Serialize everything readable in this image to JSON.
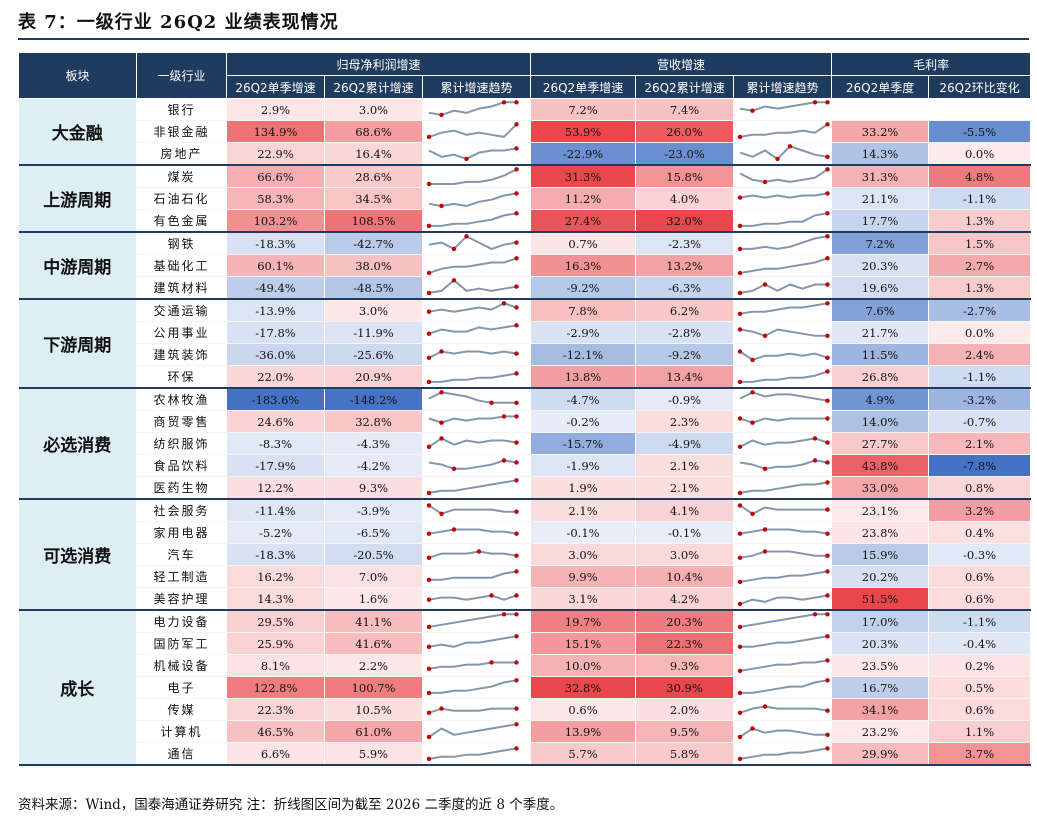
{
  "title": "表 7：一级行业 26Q2 业绩表现情况",
  "headers": {
    "sector": "板块",
    "industry": "一级行业",
    "group_profit": "归母净利润增速",
    "group_revenue": "营收增速",
    "group_margin": "毛利率",
    "q_single": "26Q2单季增速",
    "q_cum": "26Q2累计增速",
    "trend": "累计增速趋势",
    "margin_q": "26Q2单季度",
    "margin_chg": "26Q2环比变化"
  },
  "colors": {
    "header": "#1F3B5E",
    "sector_bg": "#DDEFF4",
    "pos": "#E8474B",
    "neg": "#4472C4",
    "spark": "#8496AA",
    "spark_dot": "#C00000"
  },
  "sectors": [
    {
      "name": "大金融",
      "rows": [
        {
          "ind": "银行",
          "p1": "2.9%",
          "p2": "3.0%",
          "r1": "7.2%",
          "r2": "7.4%",
          "m1": "",
          "m2": "",
          "ps": [
            3,
            2,
            4,
            3,
            5,
            6,
            8,
            8
          ],
          "rs": [
            5,
            4,
            6,
            5,
            6,
            7,
            8,
            8
          ]
        },
        {
          "ind": "非银金融",
          "p1": "134.9%",
          "p2": "68.6%",
          "r1": "53.9%",
          "r2": "26.0%",
          "m1": "33.2%",
          "m2": "-5.5%",
          "ps": [
            2,
            4,
            5,
            3,
            4,
            3,
            2,
            8
          ],
          "rs": [
            2,
            3,
            3,
            4,
            4,
            5,
            4,
            8
          ]
        },
        {
          "ind": "房地产",
          "p1": "22.9%",
          "p2": "16.4%",
          "r1": "-22.9%",
          "r2": "-23.0%",
          "m1": "14.3%",
          "m2": "0.0%",
          "ps": [
            6,
            3,
            4,
            2,
            5,
            6,
            6,
            7
          ],
          "rs": [
            5,
            3,
            6,
            2,
            8,
            6,
            4,
            3
          ]
        }
      ]
    },
    {
      "name": "上游周期",
      "rows": [
        {
          "ind": "煤炭",
          "p1": "66.6%",
          "p2": "28.6%",
          "r1": "31.3%",
          "r2": "15.8%",
          "m1": "31.3%",
          "m2": "4.8%",
          "ps": [
            1,
            1,
            1,
            2,
            2,
            3,
            5,
            8
          ],
          "rs": [
            6,
            3,
            2,
            3,
            2,
            3,
            4,
            8
          ]
        },
        {
          "ind": "石油石化",
          "p1": "58.3%",
          "p2": "34.5%",
          "r1": "11.2%",
          "r2": "4.0%",
          "m1": "21.1%",
          "m2": "-1.1%",
          "ps": [
            2,
            1,
            2,
            1,
            3,
            4,
            6,
            7
          ],
          "rs": [
            5,
            6,
            5,
            6,
            5,
            6,
            6,
            7
          ]
        },
        {
          "ind": "有色金属",
          "p1": "103.2%",
          "p2": "108.5%",
          "r1": "27.4%",
          "r2": "32.0%",
          "m1": "17.7%",
          "m2": "1.3%",
          "ps": [
            2,
            2,
            3,
            3,
            4,
            5,
            7,
            8
          ],
          "rs": [
            2,
            2,
            3,
            3,
            4,
            4,
            7,
            8
          ]
        }
      ]
    },
    {
      "name": "中游周期",
      "rows": [
        {
          "ind": "钢铁",
          "p1": "-18.3%",
          "p2": "-42.7%",
          "r1": "0.7%",
          "r2": "-2.3%",
          "m1": "7.2%",
          "m2": "1.5%",
          "ps": [
            4,
            5,
            2,
            8,
            5,
            2,
            4,
            5
          ],
          "rs": [
            2,
            2,
            3,
            2,
            3,
            5,
            7,
            8
          ]
        },
        {
          "ind": "基础化工",
          "p1": "60.1%",
          "p2": "38.0%",
          "r1": "16.3%",
          "r2": "13.2%",
          "m1": "20.3%",
          "m2": "2.7%",
          "ps": [
            1,
            3,
            4,
            4,
            5,
            6,
            6,
            8
          ],
          "rs": [
            1,
            2,
            3,
            3,
            4,
            5,
            6,
            8
          ]
        },
        {
          "ind": "建筑材料",
          "p1": "-49.4%",
          "p2": "-48.5%",
          "r1": "-9.2%",
          "r2": "-6.3%",
          "m1": "19.6%",
          "m2": "1.3%",
          "ps": [
            2,
            3,
            8,
            3,
            4,
            3,
            4,
            5
          ],
          "rs": [
            2,
            3,
            6,
            3,
            6,
            4,
            6,
            6
          ]
        }
      ]
    },
    {
      "name": "下游周期",
      "rows": [
        {
          "ind": "交通运输",
          "p1": "-13.9%",
          "p2": "3.0%",
          "r1": "7.8%",
          "r2": "6.2%",
          "m1": "7.6%",
          "m2": "-2.7%",
          "ps": [
            4,
            5,
            4,
            5,
            6,
            5,
            8,
            6
          ],
          "rs": [
            3,
            4,
            4,
            5,
            6,
            6,
            7,
            8
          ]
        },
        {
          "ind": "公用事业",
          "p1": "-17.8%",
          "p2": "-11.9%",
          "r1": "-2.9%",
          "r2": "-2.8%",
          "m1": "21.7%",
          "m2": "0.0%",
          "ps": [
            4,
            6,
            5,
            5,
            7,
            6,
            7,
            8
          ],
          "rs": [
            6,
            5,
            3,
            6,
            5,
            4,
            3,
            3
          ]
        },
        {
          "ind": "建筑装饰",
          "p1": "-36.0%",
          "p2": "-25.6%",
          "r1": "-12.1%",
          "r2": "-9.2%",
          "m1": "11.5%",
          "m2": "2.4%",
          "ps": [
            3,
            6,
            5,
            6,
            6,
            5,
            6,
            5
          ],
          "rs": [
            6,
            2,
            4,
            4,
            5,
            4,
            5,
            3
          ]
        },
        {
          "ind": "环保",
          "p1": "22.0%",
          "p2": "20.9%",
          "r1": "13.8%",
          "r2": "13.4%",
          "m1": "26.8%",
          "m2": "-1.1%",
          "ps": [
            2,
            2,
            3,
            3,
            4,
            4,
            5,
            6
          ],
          "rs": [
            2,
            2,
            3,
            3,
            4,
            4,
            5,
            7
          ]
        }
      ]
    },
    {
      "name": "必选消费",
      "rows": [
        {
          "ind": "农林牧渔",
          "p1": "-183.6%",
          "p2": "-148.2%",
          "r1": "-4.7%",
          "r2": "-0.9%",
          "m1": "4.9%",
          "m2": "-3.2%",
          "ps": [
            5,
            8,
            7,
            6,
            4,
            3,
            3,
            3
          ],
          "rs": [
            5,
            8,
            6,
            7,
            7,
            6,
            5,
            4
          ]
        },
        {
          "ind": "商贸零售",
          "p1": "24.6%",
          "p2": "32.8%",
          "r1": "-0.2%",
          "r2": "2.3%",
          "m1": "14.0%",
          "m2": "-0.7%",
          "ps": [
            6,
            4,
            6,
            5,
            6,
            6,
            7,
            7
          ],
          "rs": [
            6,
            4,
            6,
            5,
            6,
            6,
            6,
            6
          ]
        },
        {
          "ind": "纺织服饰",
          "p1": "-8.3%",
          "p2": "-4.3%",
          "r1": "-15.7%",
          "r2": "-4.9%",
          "m1": "27.7%",
          "m2": "2.1%",
          "ps": [
            3,
            7,
            4,
            6,
            5,
            6,
            6,
            5
          ],
          "rs": [
            3,
            6,
            4,
            5,
            5,
            6,
            7,
            5
          ]
        },
        {
          "ind": "食品饮料",
          "p1": "-17.9%",
          "p2": "-4.2%",
          "r1": "-1.9%",
          "r2": "2.1%",
          "m1": "43.8%",
          "m2": "-7.8%",
          "ps": [
            6,
            5,
            3,
            3,
            4,
            5,
            7,
            6
          ],
          "rs": [
            6,
            5,
            3,
            4,
            4,
            5,
            7,
            6
          ]
        },
        {
          "ind": "医药生物",
          "p1": "12.2%",
          "p2": "9.3%",
          "r1": "1.9%",
          "r2": "2.1%",
          "m1": "33.0%",
          "m2": "0.8%",
          "ps": [
            2,
            3,
            3,
            4,
            5,
            6,
            7,
            8
          ],
          "rs": [
            2,
            3,
            3,
            4,
            5,
            6,
            6,
            7
          ]
        }
      ]
    },
    {
      "name": "可选消费",
      "rows": [
        {
          "ind": "社会服务",
          "p1": "-11.4%",
          "p2": "-3.9%",
          "r1": "2.1%",
          "r2": "4.1%",
          "m1": "23.1%",
          "m2": "3.2%",
          "ps": [
            7,
            3,
            5,
            5,
            5,
            5,
            4,
            4
          ],
          "rs": [
            7,
            3,
            6,
            5,
            5,
            5,
            5,
            5
          ]
        },
        {
          "ind": "家用电器",
          "p1": "-5.2%",
          "p2": "-6.5%",
          "r1": "-0.1%",
          "r2": "-0.1%",
          "m1": "23.8%",
          "m2": "0.4%",
          "ps": [
            4,
            5,
            6,
            6,
            6,
            5,
            5,
            4
          ],
          "rs": [
            4,
            5,
            6,
            6,
            6,
            5,
            5,
            4
          ]
        },
        {
          "ind": "汽车",
          "p1": "-18.3%",
          "p2": "-20.5%",
          "r1": "3.0%",
          "r2": "3.0%",
          "m1": "15.9%",
          "m2": "-0.3%",
          "ps": [
            3,
            5,
            5,
            5,
            6,
            5,
            5,
            4
          ],
          "rs": [
            3,
            4,
            6,
            6,
            6,
            5,
            4,
            4
          ]
        },
        {
          "ind": "轻工制造",
          "p1": "16.2%",
          "p2": "7.0%",
          "r1": "9.9%",
          "r2": "10.4%",
          "m1": "20.2%",
          "m2": "0.6%",
          "ps": [
            3,
            3,
            4,
            4,
            4,
            4,
            6,
            7
          ],
          "rs": [
            2,
            3,
            4,
            4,
            5,
            5,
            6,
            7
          ]
        },
        {
          "ind": "美容护理",
          "p1": "14.3%",
          "p2": "1.6%",
          "r1": "3.1%",
          "r2": "4.2%",
          "m1": "51.5%",
          "m2": "0.6%",
          "ps": [
            4,
            5,
            5,
            4,
            5,
            6,
            4,
            6
          ],
          "rs": [
            2,
            4,
            3,
            5,
            5,
            4,
            5,
            6
          ]
        }
      ]
    },
    {
      "name": "成长",
      "rows": [
        {
          "ind": "电力设备",
          "p1": "29.5%",
          "p2": "41.1%",
          "r1": "19.7%",
          "r2": "20.3%",
          "m1": "17.0%",
          "m2": "-1.1%",
          "ps": [
            2,
            3,
            4,
            5,
            6,
            7,
            8,
            8
          ],
          "rs": [
            2,
            3,
            4,
            5,
            6,
            7,
            8,
            8
          ]
        },
        {
          "ind": "国防军工",
          "p1": "25.9%",
          "p2": "41.6%",
          "r1": "15.1%",
          "r2": "22.3%",
          "m1": "20.3%",
          "m2": "-0.4%",
          "ps": [
            3,
            4,
            3,
            5,
            5,
            6,
            7,
            8
          ],
          "rs": [
            3,
            3,
            4,
            5,
            5,
            6,
            7,
            8
          ]
        },
        {
          "ind": "机械设备",
          "p1": "8.1%",
          "p2": "2.2%",
          "r1": "10.0%",
          "r2": "9.3%",
          "m1": "23.5%",
          "m2": "0.2%",
          "ps": [
            3,
            4,
            4,
            5,
            5,
            6,
            6,
            6
          ],
          "rs": [
            2,
            3,
            4,
            5,
            5,
            6,
            6,
            7
          ]
        },
        {
          "ind": "电子",
          "p1": "122.8%",
          "p2": "100.7%",
          "r1": "32.8%",
          "r2": "30.9%",
          "m1": "16.7%",
          "m2": "0.5%",
          "ps": [
            2,
            2,
            3,
            3,
            4,
            5,
            7,
            8
          ],
          "rs": [
            2,
            2,
            3,
            4,
            5,
            5,
            7,
            8
          ]
        },
        {
          "ind": "传媒",
          "p1": "22.3%",
          "p2": "10.5%",
          "r1": "0.6%",
          "r2": "2.0%",
          "m1": "34.1%",
          "m2": "0.6%",
          "ps": [
            3,
            5,
            4,
            4,
            4,
            5,
            5,
            5
          ],
          "rs": [
            3,
            5,
            6,
            5,
            5,
            5,
            5,
            4
          ]
        },
        {
          "ind": "计算机",
          "p1": "46.5%",
          "p2": "61.0%",
          "r1": "13.9%",
          "r2": "9.5%",
          "m1": "23.2%",
          "m2": "1.1%",
          "ps": [
            2,
            6,
            3,
            4,
            5,
            6,
            7,
            8
          ],
          "rs": [
            2,
            6,
            4,
            5,
            5,
            4,
            3,
            3
          ]
        },
        {
          "ind": "通信",
          "p1": "6.6%",
          "p2": "5.9%",
          "r1": "5.7%",
          "r2": "5.8%",
          "m1": "29.9%",
          "m2": "3.7%",
          "ps": [
            2,
            3,
            3,
            4,
            4,
            5,
            6,
            7
          ],
          "rs": [
            2,
            3,
            4,
            4,
            5,
            5,
            6,
            7
          ]
        }
      ]
    }
  ],
  "footer": "资料来源：Wind，国泰海通证券研究 注：折线图区间为截至 2026 二季度的近 8 个季度。"
}
